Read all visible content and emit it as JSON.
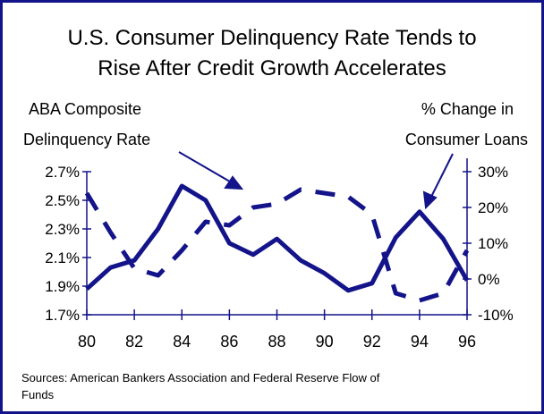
{
  "chart_data": {
    "type": "line",
    "title": [
      "U.S. Consumer Delinquency Rate Tends to",
      "Rise After Credit Growth Accelerates"
    ],
    "y_label": [
      "ABA Composite",
      "Delinquency Rate"
    ],
    "y2_label": [
      "% Change in",
      "Consumer Loans"
    ],
    "source": [
      "Sources:  American Bankers Association and Federal Reserve Flow of",
      "Funds"
    ],
    "x": [
      80,
      81,
      82,
      83,
      84,
      85,
      86,
      87,
      88,
      89,
      90,
      91,
      92,
      93,
      94,
      95,
      96
    ],
    "xlim": [
      80,
      96
    ],
    "xticks": [
      80,
      82,
      84,
      86,
      88,
      90,
      92,
      94,
      96
    ],
    "ylim": [
      1.7,
      2.7
    ],
    "yticks": [
      {
        "value": 1.7,
        "label": "1.7%"
      },
      {
        "value": 1.9,
        "label": "1.9%"
      },
      {
        "value": 2.1,
        "label": "2.1%"
      },
      {
        "value": 2.3,
        "label": "2.3%"
      },
      {
        "value": 2.5,
        "label": "2.5%"
      },
      {
        "value": 2.7,
        "label": "2.7%"
      }
    ],
    "y2lim": [
      -10,
      30
    ],
    "y2ticks": [
      {
        "value": -10,
        "label": "-10%"
      },
      {
        "value": 0,
        "label": "0%"
      },
      {
        "value": 10,
        "label": "10%"
      },
      {
        "value": 20,
        "label": "20%"
      },
      {
        "value": 30,
        "label": "30%"
      }
    ],
    "series": [
      {
        "color": "#14148a",
        "style": "solid",
        "values": [
          1.88,
          2.03,
          2.08,
          2.3,
          2.6,
          2.5,
          2.2,
          2.12,
          2.23,
          2.08,
          1.99,
          1.87,
          1.92,
          2.24,
          2.42,
          2.23,
          1.94
        ]
      },
      {
        "color": "#14148a",
        "style": "dashed",
        "axis": "y2",
        "values": [
          24,
          13,
          3,
          1,
          8,
          16,
          15,
          20,
          21,
          25,
          24,
          23,
          18,
          -4,
          -6,
          -4,
          8
        ]
      }
    ]
  }
}
